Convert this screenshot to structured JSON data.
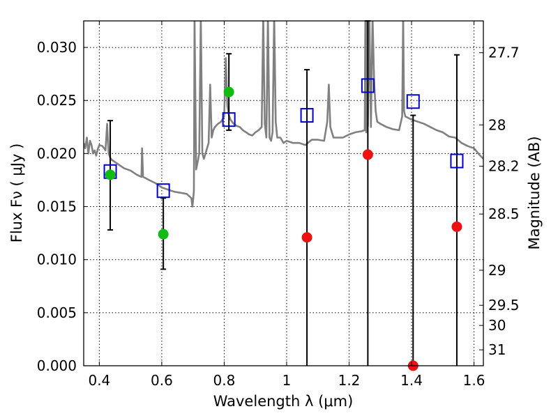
{
  "chart_data": {
    "type": "line",
    "xlabel": "Wavelength  λ (μm)",
    "ylabel": "Flux  Fν  ( μJy )",
    "y2label": "Magnitude (AB)",
    "xlim": [
      0.35,
      1.63
    ],
    "ylim": [
      0.0,
      0.0325
    ],
    "grid": true,
    "x_ticks": [
      0.4,
      0.6,
      0.8,
      1.0,
      1.2,
      1.4,
      1.6
    ],
    "x_tick_labels": [
      "0.4",
      "0.6",
      "0.8",
      "1",
      "1.2",
      "1.4",
      "1.6"
    ],
    "y_ticks": [
      0.0,
      0.005,
      0.01,
      0.015,
      0.02,
      0.025,
      0.03
    ],
    "y_tick_labels": [
      "0.000",
      "0.005",
      "0.010",
      "0.015",
      "0.020",
      "0.025",
      "0.030"
    ],
    "mag_ticks": [
      {
        "label": "27.7",
        "flux": 0.0295
      },
      {
        "label": "28",
        "flux": 0.0227
      },
      {
        "label": "28.2",
        "flux": 0.0188
      },
      {
        "label": "28.5",
        "flux": 0.0143
      },
      {
        "label": "29",
        "flux": 0.009
      },
      {
        "label": "29.5",
        "flux": 0.0057
      },
      {
        "label": "30",
        "flux": 0.0038
      },
      {
        "label": "31",
        "flux": 0.0015
      }
    ],
    "series": [
      {
        "type": "line",
        "color": "#808080",
        "x": [
          0.35,
          0.355,
          0.36,
          0.365,
          0.37,
          0.375,
          0.38,
          0.385,
          0.39,
          0.395,
          0.4,
          0.41,
          0.42,
          0.425,
          0.43,
          0.435,
          0.44,
          0.45,
          0.46,
          0.47,
          0.48,
          0.5,
          0.52,
          0.535,
          0.537,
          0.54,
          0.56,
          0.58,
          0.6,
          0.62,
          0.64,
          0.66,
          0.68,
          0.695,
          0.698,
          0.7,
          0.703,
          0.705,
          0.71,
          0.715,
          0.72,
          0.725,
          0.73,
          0.735,
          0.74,
          0.75,
          0.755,
          0.76,
          0.765,
          0.77,
          0.78,
          0.79,
          0.8,
          0.805,
          0.81,
          0.815,
          0.82,
          0.83,
          0.84,
          0.85,
          0.86,
          0.87,
          0.88,
          0.89,
          0.9,
          0.91,
          0.92,
          0.925,
          0.93,
          0.935,
          0.94,
          0.945,
          0.95,
          0.955,
          0.96,
          0.965,
          0.97,
          0.98,
          0.99,
          1.0,
          1.02,
          1.04,
          1.06,
          1.08,
          1.1,
          1.12,
          1.13,
          1.135,
          1.14,
          1.15,
          1.18,
          1.2,
          1.22,
          1.24,
          1.25,
          1.252,
          1.255,
          1.258,
          1.26,
          1.265,
          1.27,
          1.275,
          1.28,
          1.285,
          1.29,
          1.3,
          1.32,
          1.34,
          1.36,
          1.37,
          1.373,
          1.376,
          1.38,
          1.4,
          1.42,
          1.44,
          1.46,
          1.48,
          1.5,
          1.52,
          1.54,
          1.56,
          1.58,
          1.6,
          1.62,
          1.63
        ],
        "y": [
          0.021,
          0.0205,
          0.0215,
          0.02,
          0.0212,
          0.0208,
          0.02,
          0.0203,
          0.0198,
          0.0204,
          0.0208,
          0.0207,
          0.0203,
          0.0228,
          0.02,
          0.0196,
          0.0194,
          0.0192,
          0.019,
          0.0188,
          0.0186,
          0.0184,
          0.018,
          0.0178,
          0.0205,
          0.0178,
          0.0175,
          0.0172,
          0.0168,
          0.0166,
          0.0164,
          0.0163,
          0.0162,
          0.0158,
          0.015,
          0.0155,
          0.0165,
          0.033,
          0.0185,
          0.0192,
          0.02,
          0.033,
          0.02,
          0.0195,
          0.02,
          0.021,
          0.0265,
          0.0215,
          0.0222,
          0.0225,
          0.0228,
          0.023,
          0.0235,
          0.029,
          0.0245,
          0.0236,
          0.0232,
          0.0228,
          0.0226,
          0.0225,
          0.0222,
          0.022,
          0.0218,
          0.0217,
          0.022,
          0.0222,
          0.0225,
          0.033,
          0.0228,
          0.0215,
          0.033,
          0.0215,
          0.0212,
          0.022,
          0.033,
          0.023,
          0.0215,
          0.0215,
          0.021,
          0.0212,
          0.021,
          0.021,
          0.0208,
          0.0213,
          0.0213,
          0.0212,
          0.023,
          0.0265,
          0.0225,
          0.0215,
          0.0215,
          0.0218,
          0.022,
          0.0221,
          0.0222,
          0.033,
          0.022,
          0.033,
          0.0226,
          0.033,
          0.0225,
          0.033,
          0.027,
          0.024,
          0.023,
          0.0228,
          0.0225,
          0.0223,
          0.0222,
          0.0235,
          0.033,
          0.024,
          0.0235,
          0.0232,
          0.023,
          0.0228,
          0.0225,
          0.0222,
          0.022,
          0.0216,
          0.0215,
          0.021,
          0.0207,
          0.0205,
          0.0198,
          0.0195
        ]
      },
      {
        "type": "scatter",
        "marker": "square-open",
        "color": "#0000cc",
        "x": [
          0.435,
          0.605,
          0.815,
          1.065,
          1.26,
          1.405,
          1.545
        ],
        "y": [
          0.0183,
          0.0165,
          0.0232,
          0.0236,
          0.0264,
          0.0249,
          0.0193
        ]
      },
      {
        "type": "scatter",
        "marker": "circle",
        "color": "#11bb11",
        "x": [
          0.435,
          0.605,
          0.815
        ],
        "y": [
          0.018,
          0.0124,
          0.0258
        ],
        "yerr_low": [
          0.0128,
          0.0091,
          0.0222
        ],
        "yerr_high": [
          0.0231,
          0.0158,
          0.0294
        ]
      },
      {
        "type": "scatter",
        "marker": "circle",
        "color": "#ee1111",
        "x": [
          1.065,
          1.26,
          1.405,
          1.545
        ],
        "y": [
          0.0121,
          0.0199,
          0.0,
          0.0131
        ],
        "yerr_low": [
          0.0,
          0.0,
          0.0,
          0.0
        ],
        "yerr_high": [
          0.0279,
          0.033,
          0.0236,
          0.0293
        ]
      }
    ]
  }
}
